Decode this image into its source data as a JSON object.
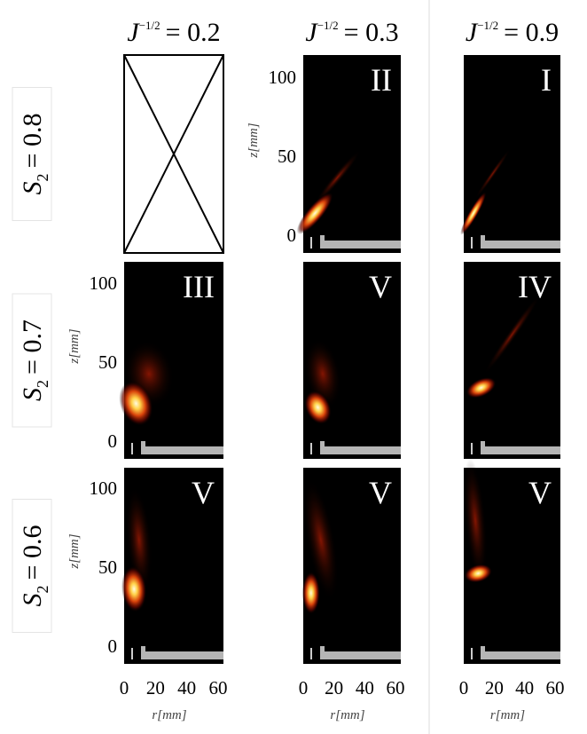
{
  "columns": [
    {
      "label_base": "J",
      "label_exp": "−1/2",
      "label_value": "= 0.2"
    },
    {
      "label_base": "J",
      "label_exp": "−1/2",
      "label_value": "= 0.3"
    },
    {
      "label_base": "J",
      "label_exp": "−1/2",
      "label_value": "= 0.9"
    }
  ],
  "rows": [
    {
      "label_base": "S",
      "label_sub": "2",
      "label_value": "= 0.8"
    },
    {
      "label_base": "S",
      "label_sub": "2",
      "label_value": "= 0.7"
    },
    {
      "label_base": "S",
      "label_sub": "2",
      "label_value": "= 0.6"
    }
  ],
  "panels": [
    [
      null,
      "II",
      "I"
    ],
    [
      "III",
      "V",
      "IV"
    ],
    [
      "V",
      "V",
      "V"
    ]
  ],
  "axes": {
    "z_label": "z[mm]",
    "r_label": "r[mm]",
    "z_ticks": [
      0,
      50,
      100
    ],
    "r_ticks": [
      0,
      20,
      40,
      60
    ]
  }
}
